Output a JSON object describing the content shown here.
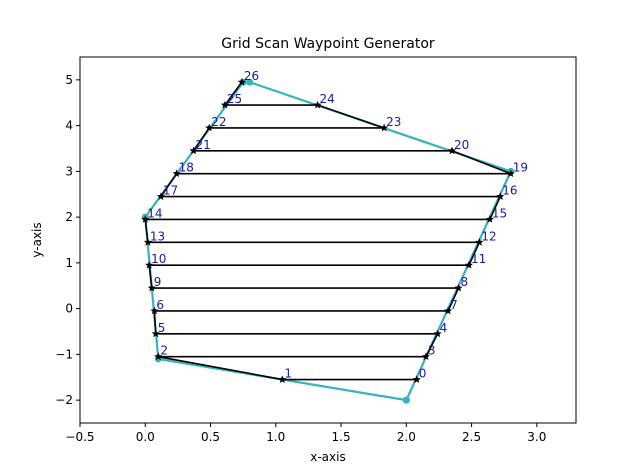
{
  "chart_data": {
    "type": "line",
    "title": "Grid Scan Waypoint Generator",
    "xlabel": "x-axis",
    "ylabel": "y-axis",
    "xlim": [
      -0.5,
      3.3
    ],
    "ylim": [
      -2.5,
      5.5
    ],
    "xticks": [
      -0.5,
      0.0,
      0.5,
      1.0,
      1.5,
      2.0,
      2.5,
      3.0
    ],
    "xtick_labels": [
      "−0.5",
      "0.0",
      "0.5",
      "1.0",
      "1.5",
      "2.0",
      "2.5",
      "3.0"
    ],
    "yticks": [
      -2,
      -1,
      0,
      1,
      2,
      3,
      4,
      5
    ],
    "ytick_labels": [
      "−2",
      "−1",
      "0",
      "1",
      "2",
      "3",
      "4",
      "5"
    ],
    "grid": false,
    "colors": {
      "boundary": "#35b3bf",
      "path": "#000000",
      "label": "#1a1aa6"
    },
    "boundary": {
      "x": [
        2.0,
        0.1,
        0.0,
        0.75,
        0.8,
        2.8,
        2.0
      ],
      "y": [
        -2.0,
        -1.1,
        2.0,
        4.95,
        4.95,
        3.0,
        -2.0
      ]
    },
    "waypoints": [
      {
        "label": "0",
        "x": 2.08,
        "y": -1.55
      },
      {
        "label": "1",
        "x": 1.05,
        "y": -1.55
      },
      {
        "label": "2",
        "x": 0.1,
        "y": -1.05
      },
      {
        "label": "3",
        "x": 2.15,
        "y": -1.05
      },
      {
        "label": "4",
        "x": 2.24,
        "y": -0.55
      },
      {
        "label": "5",
        "x": 0.08,
        "y": -0.55
      },
      {
        "label": "6",
        "x": 0.07,
        "y": -0.05
      },
      {
        "label": "7",
        "x": 2.32,
        "y": -0.05
      },
      {
        "label": "8",
        "x": 2.4,
        "y": 0.45
      },
      {
        "label": "9",
        "x": 0.05,
        "y": 0.45
      },
      {
        "label": "10",
        "x": 0.03,
        "y": 0.95
      },
      {
        "label": "11",
        "x": 2.48,
        "y": 0.95
      },
      {
        "label": "12",
        "x": 2.56,
        "y": 1.45
      },
      {
        "label": "13",
        "x": 0.02,
        "y": 1.45
      },
      {
        "label": "14",
        "x": 0.0,
        "y": 1.95
      },
      {
        "label": "15",
        "x": 2.64,
        "y": 1.95
      },
      {
        "label": "16",
        "x": 2.72,
        "y": 2.45
      },
      {
        "label": "17",
        "x": 0.12,
        "y": 2.45
      },
      {
        "label": "18",
        "x": 0.24,
        "y": 2.95
      },
      {
        "label": "19",
        "x": 2.8,
        "y": 2.95
      },
      {
        "label": "20",
        "x": 2.35,
        "y": 3.45
      },
      {
        "label": "21",
        "x": 0.37,
        "y": 3.45
      },
      {
        "label": "22",
        "x": 0.49,
        "y": 3.95
      },
      {
        "label": "23",
        "x": 1.83,
        "y": 3.95
      },
      {
        "label": "24",
        "x": 1.32,
        "y": 4.45
      },
      {
        "label": "25",
        "x": 0.61,
        "y": 4.45
      },
      {
        "label": "26",
        "x": 0.74,
        "y": 4.95
      }
    ]
  }
}
